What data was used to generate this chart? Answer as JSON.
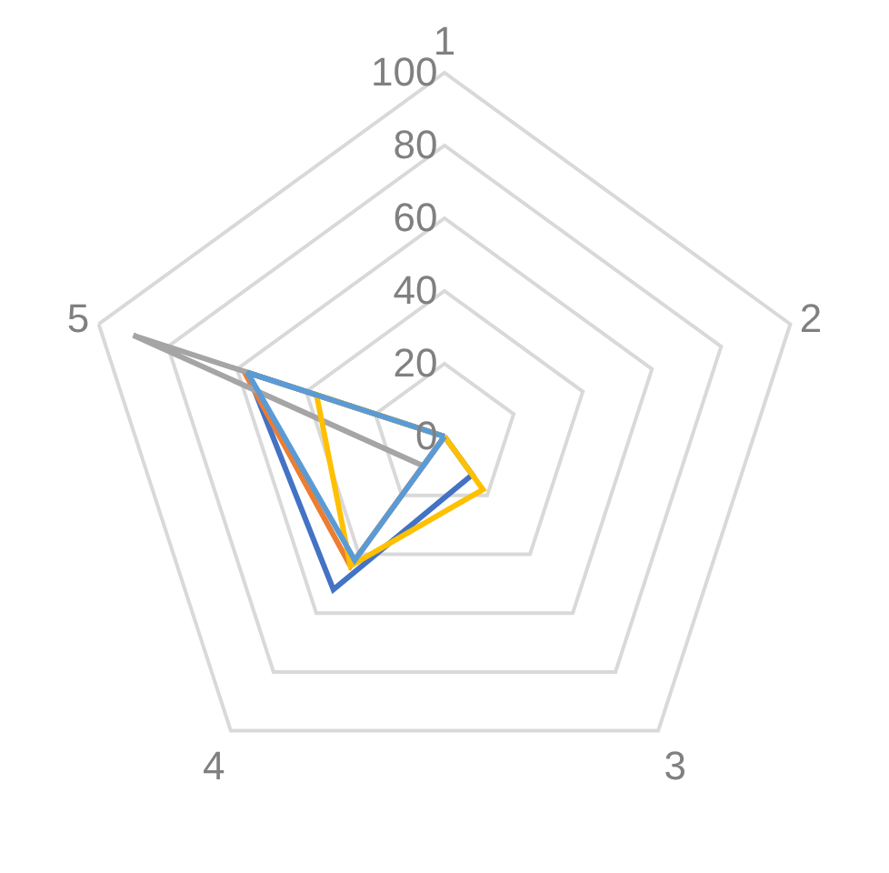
{
  "chart_data": {
    "type": "radar",
    "categories": [
      "1",
      "2",
      "3",
      "4",
      "5"
    ],
    "ylim": [
      0,
      100
    ],
    "yticks": [
      0,
      20,
      40,
      60,
      80,
      100
    ],
    "grid": true,
    "legend": false,
    "marker": "none",
    "series": [
      {
        "color": "#4472c4",
        "values": [
          0,
          0,
          13,
          52,
          57
        ]
      },
      {
        "color": "#ed7d31",
        "values": [
          0,
          0,
          0,
          44,
          58
        ]
      },
      {
        "color": "#a5a5a5",
        "values": [
          0,
          0,
          0,
          10,
          90
        ]
      },
      {
        "color": "#ffc000",
        "values": [
          0,
          0,
          18,
          44,
          37
        ]
      },
      {
        "color": "#5b9bd5",
        "values": [
          0,
          0,
          0,
          42,
          57
        ]
      }
    ]
  }
}
